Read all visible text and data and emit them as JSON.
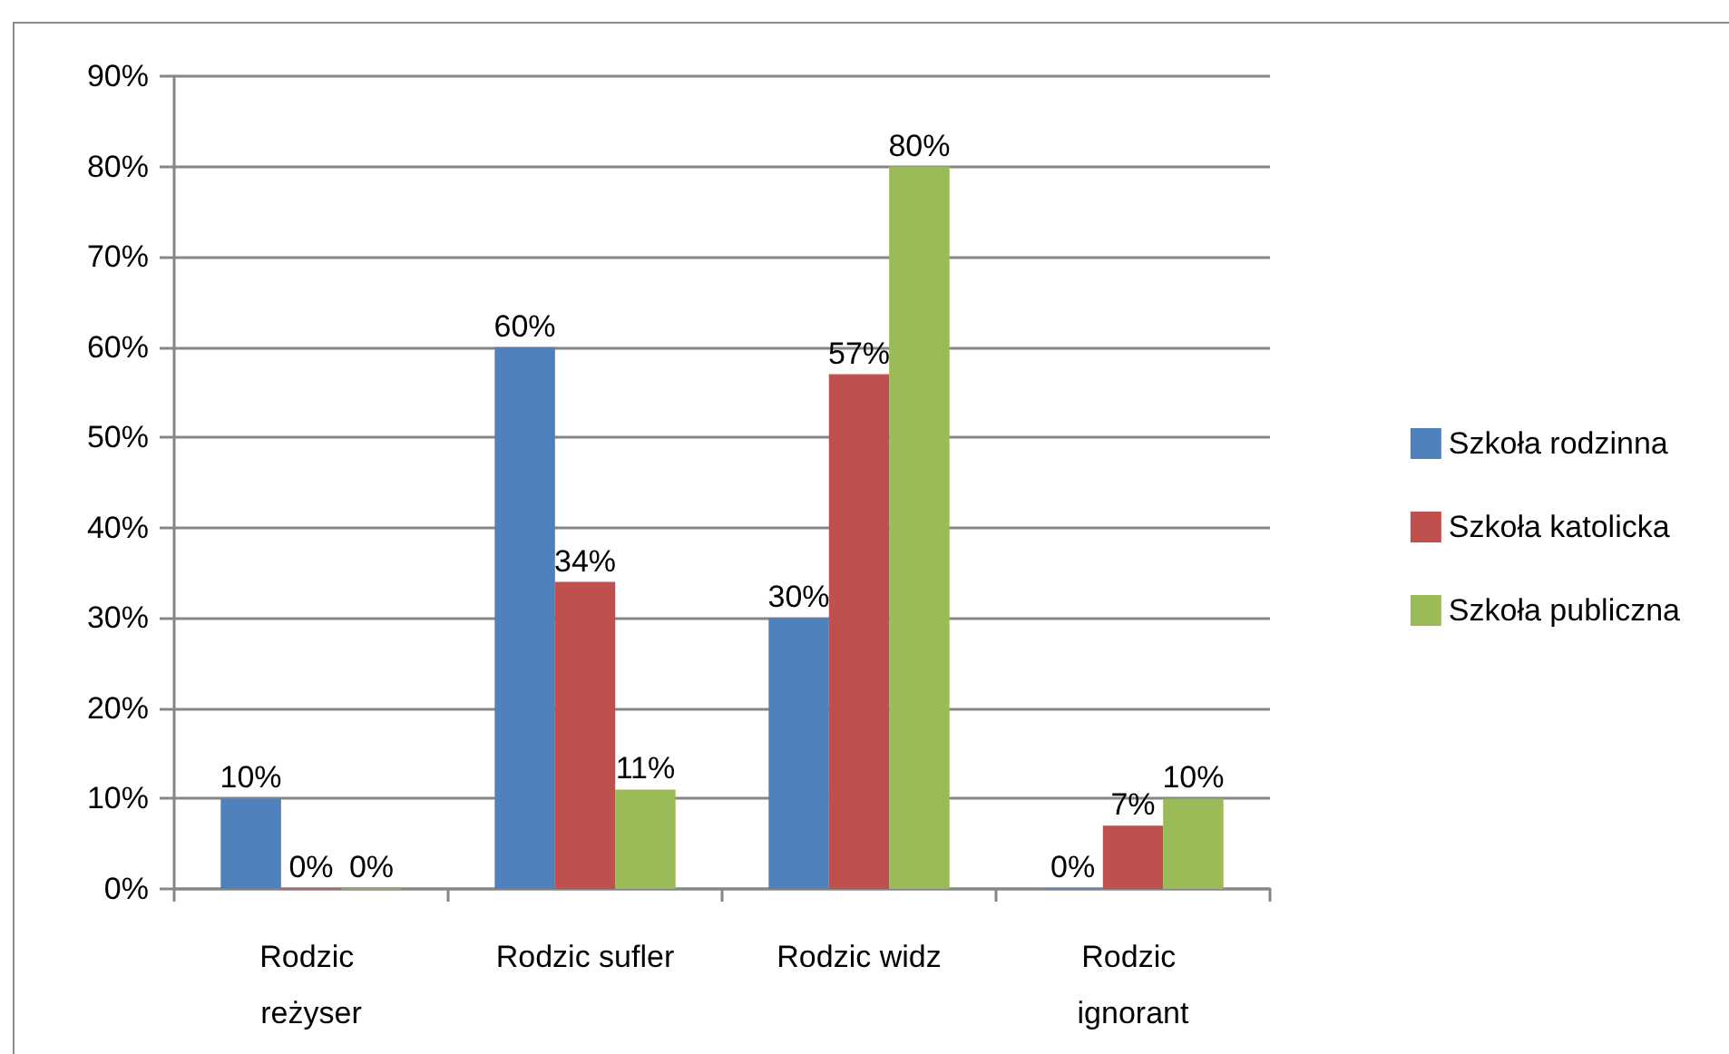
{
  "chart_data": {
    "type": "bar",
    "categories": [
      "Rodzic reżyser",
      "Rodzic sufler",
      "Rodzic widz",
      "Rodzic ignorant"
    ],
    "series": [
      {
        "name": "Szkoła rodzinna",
        "color": "#4f81bd",
        "values": [
          10,
          60,
          30,
          0
        ],
        "value_labels": [
          "10%",
          "60%",
          "30%",
          "0%"
        ]
      },
      {
        "name": "Szkoła katolicka",
        "color": "#c0504d",
        "values": [
          0,
          34,
          57,
          7
        ],
        "value_labels": [
          "0%",
          "34%",
          "57%",
          "7%"
        ]
      },
      {
        "name": "Szkoła publiczna",
        "color": "#9bbb59",
        "values": [
          0,
          11,
          80,
          10
        ],
        "value_labels": [
          "0%",
          "11%",
          "80%",
          "10%"
        ]
      }
    ],
    "ylim": [
      0,
      90
    ],
    "yticks": [
      {
        "value": 0,
        "label": "0%"
      },
      {
        "value": 10,
        "label": "10%"
      },
      {
        "value": 20,
        "label": "20%"
      },
      {
        "value": 30,
        "label": "30%"
      },
      {
        "value": 40,
        "label": "40%"
      },
      {
        "value": 50,
        "label": "50%"
      },
      {
        "value": 60,
        "label": "60%"
      },
      {
        "value": 70,
        "label": "70%"
      },
      {
        "value": 80,
        "label": "80%"
      },
      {
        "value": 90,
        "label": "90%"
      }
    ],
    "grid": "y",
    "legend": "right"
  }
}
